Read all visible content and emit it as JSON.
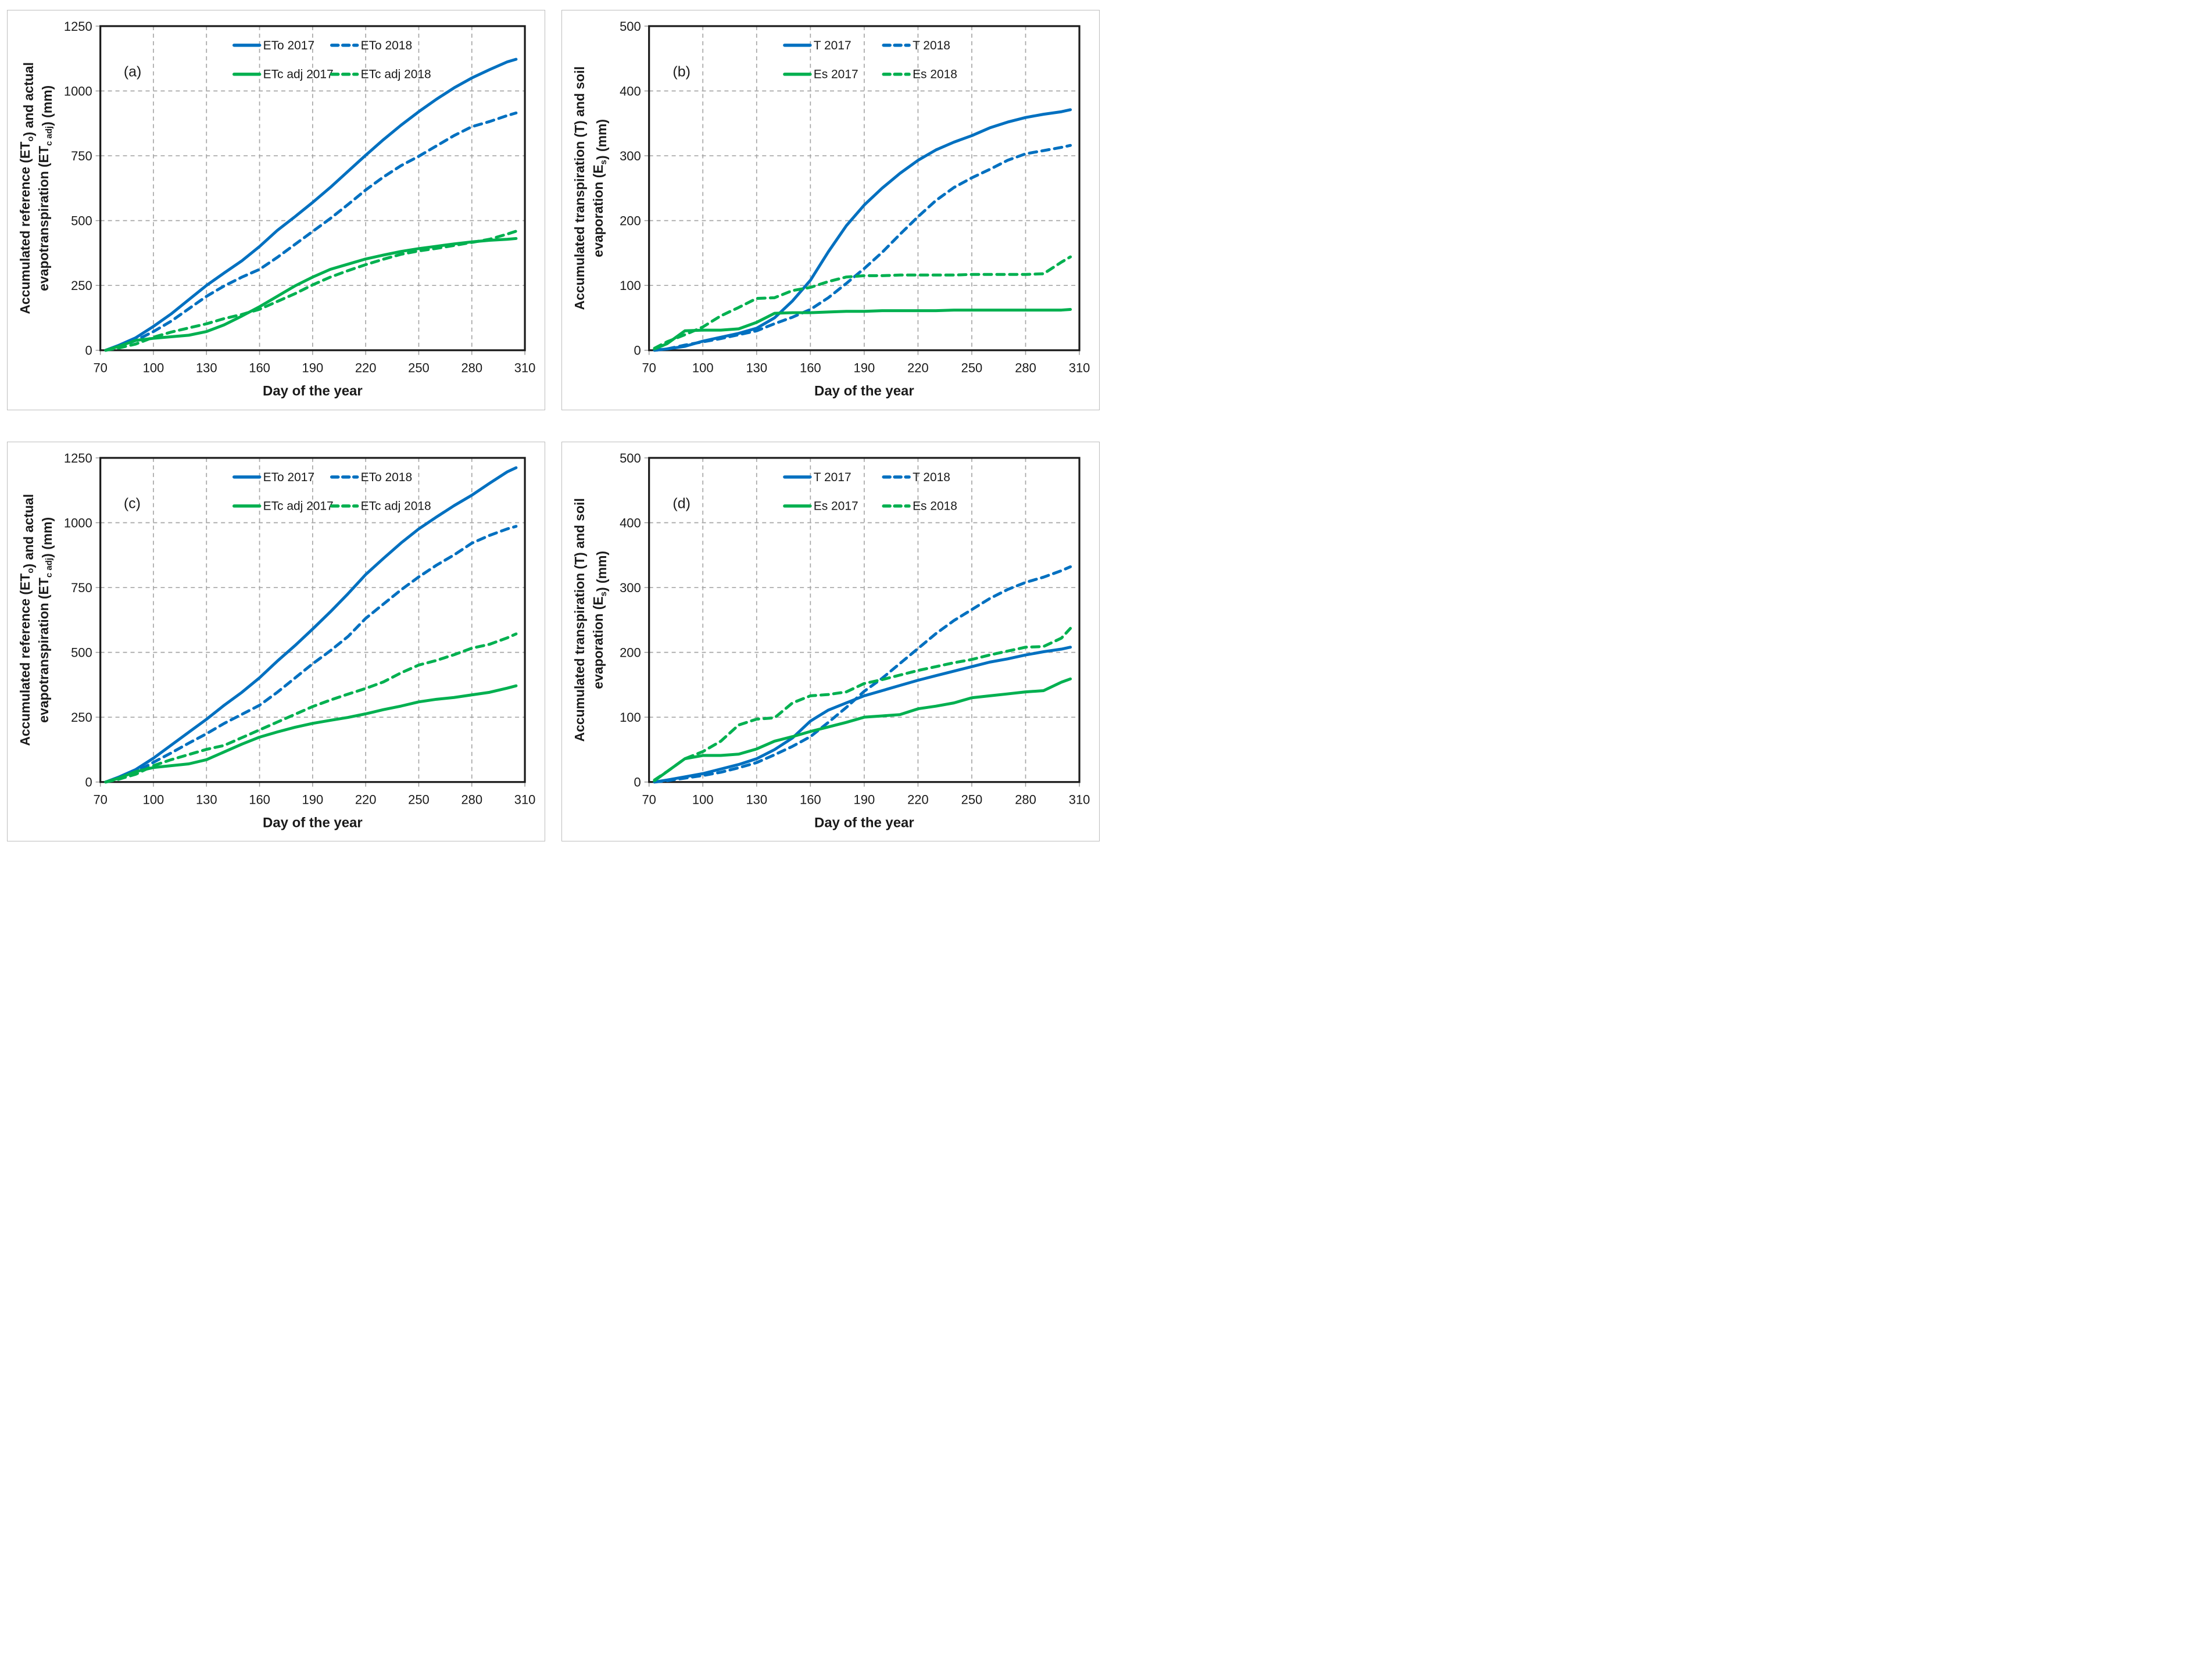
{
  "figure": {
    "description": "Four-panel line figure of accumulated evapotranspiration components versus day of year",
    "accent_blue": "#0070C0",
    "accent_green": "#00B050",
    "grid_color": "#a6a6a6",
    "axis_color": "#1a1a1a"
  },
  "chart_data": [
    {
      "type": "line",
      "panel_label": "(a)",
      "xlabel": "Day of the year",
      "ylabel_lines": [
        {
          "segments": [
            {
              "t": "Accumulated reference (ET"
            },
            {
              "t": "o",
              "sub": true
            },
            {
              "t": ") and actual"
            }
          ]
        },
        {
          "segments": [
            {
              "t": "evapotranspiration (ET"
            },
            {
              "t": "c adj",
              "sub": true
            },
            {
              "t": ") (mm)"
            }
          ]
        }
      ],
      "xlim": [
        70,
        310
      ],
      "xticks": [
        70,
        100,
        130,
        160,
        190,
        220,
        250,
        280,
        310
      ],
      "ylim": [
        0,
        1250
      ],
      "yticks": [
        0,
        250,
        500,
        750,
        1000,
        1250
      ],
      "grid": true,
      "legend_position": "top-inside",
      "x": [
        73,
        80,
        90,
        100,
        110,
        120,
        130,
        140,
        150,
        160,
        170,
        180,
        190,
        200,
        210,
        220,
        230,
        240,
        250,
        260,
        270,
        280,
        290,
        300,
        305
      ],
      "series": [
        {
          "name": "ETo 2017",
          "color": "#0070C0",
          "dash": false,
          "values": [
            0,
            18,
            48,
            92,
            140,
            195,
            250,
            298,
            345,
            400,
            462,
            515,
            570,
            628,
            690,
            752,
            812,
            868,
            920,
            968,
            1012,
            1050,
            1082,
            1112,
            1122
          ]
        },
        {
          "name": "ETo 2018",
          "color": "#0070C0",
          "dash": true,
          "values": [
            0,
            12,
            38,
            72,
            112,
            160,
            208,
            248,
            282,
            312,
            358,
            408,
            458,
            508,
            562,
            618,
            668,
            712,
            748,
            788,
            828,
            862,
            882,
            905,
            915
          ]
        },
        {
          "name": "ETc adj 2017",
          "color": "#00B050",
          "dash": false,
          "values": [
            0,
            14,
            38,
            46,
            52,
            58,
            72,
            98,
            132,
            168,
            208,
            248,
            282,
            312,
            332,
            352,
            367,
            381,
            392,
            401,
            410,
            418,
            424,
            428,
            431
          ]
        },
        {
          "name": "ETc adj 2018",
          "color": "#00B050",
          "dash": true,
          "values": [
            0,
            8,
            24,
            50,
            70,
            86,
            102,
            122,
            138,
            158,
            188,
            218,
            252,
            282,
            307,
            330,
            351,
            370,
            383,
            393,
            404,
            416,
            428,
            448,
            459
          ]
        }
      ]
    },
    {
      "type": "line",
      "panel_label": "(b)",
      "xlabel": "Day of the year",
      "ylabel_lines": [
        {
          "segments": [
            {
              "t": "Accumulated transpiration (T) and soil"
            }
          ]
        },
        {
          "segments": [
            {
              "t": "evaporation (E"
            },
            {
              "t": "s",
              "sub": true
            },
            {
              "t": ") (mm)"
            }
          ]
        }
      ],
      "xlim": [
        70,
        310
      ],
      "xticks": [
        70,
        100,
        130,
        160,
        190,
        220,
        250,
        280,
        310
      ],
      "ylim": [
        0,
        500
      ],
      "yticks": [
        0,
        100,
        200,
        300,
        400,
        500
      ],
      "grid": true,
      "legend_position": "top-inside",
      "x": [
        73,
        80,
        90,
        100,
        110,
        120,
        130,
        140,
        150,
        160,
        170,
        180,
        190,
        200,
        210,
        220,
        230,
        240,
        250,
        260,
        270,
        280,
        290,
        300,
        305
      ],
      "series": [
        {
          "name": "T 2017",
          "color": "#0070C0",
          "dash": false,
          "values": [
            0,
            2,
            6,
            14,
            20,
            26,
            34,
            50,
            76,
            108,
            152,
            192,
            224,
            250,
            273,
            293,
            309,
            321,
            331,
            343,
            352,
            359,
            364,
            368,
            371
          ]
        },
        {
          "name": "T 2018",
          "color": "#0070C0",
          "dash": true,
          "values": [
            0,
            2,
            8,
            13,
            18,
            24,
            30,
            41,
            51,
            63,
            81,
            103,
            126,
            151,
            179,
            206,
            231,
            251,
            266,
            279,
            293,
            303,
            308,
            313,
            316
          ]
        },
        {
          "name": "Es 2017",
          "color": "#00B050",
          "dash": false,
          "values": [
            2,
            10,
            30,
            31,
            31,
            33,
            43,
            57,
            58,
            58,
            59,
            60,
            60,
            61,
            61,
            61,
            61,
            62,
            62,
            62,
            62,
            62,
            62,
            62,
            63
          ]
        },
        {
          "name": "Es 2018",
          "color": "#00B050",
          "dash": true,
          "values": [
            3,
            13,
            24,
            36,
            53,
            66,
            80,
            81,
            92,
            97,
            106,
            113,
            115,
            115,
            116,
            116,
            116,
            116,
            117,
            117,
            117,
            117,
            118,
            136,
            144
          ]
        }
      ]
    },
    {
      "type": "line",
      "panel_label": "(c)",
      "xlabel": "Day of the year",
      "ylabel_lines": [
        {
          "segments": [
            {
              "t": "Accumulated reference (ET"
            },
            {
              "t": "o",
              "sub": true
            },
            {
              "t": ") and actual"
            }
          ]
        },
        {
          "segments": [
            {
              "t": "evapotranspiration (ET"
            },
            {
              "t": "c adj",
              "sub": true
            },
            {
              "t": ") (mm)"
            }
          ]
        }
      ],
      "xlim": [
        70,
        310
      ],
      "xticks": [
        70,
        100,
        130,
        160,
        190,
        220,
        250,
        280,
        310
      ],
      "ylim": [
        0,
        1250
      ],
      "yticks": [
        0,
        250,
        500,
        750,
        1000,
        1250
      ],
      "grid": true,
      "legend_position": "top-inside",
      "x": [
        73,
        80,
        90,
        100,
        110,
        120,
        130,
        140,
        150,
        160,
        170,
        180,
        190,
        200,
        210,
        220,
        230,
        240,
        250,
        260,
        270,
        280,
        290,
        300,
        305
      ],
      "series": [
        {
          "name": "ETo 2017",
          "color": "#0070C0",
          "dash": false,
          "values": [
            0,
            18,
            48,
            92,
            142,
            192,
            242,
            296,
            346,
            402,
            466,
            526,
            590,
            656,
            726,
            800,
            862,
            922,
            976,
            1022,
            1066,
            1106,
            1152,
            1196,
            1212
          ]
        },
        {
          "name": "ETo 2018",
          "color": "#0070C0",
          "dash": true,
          "values": [
            0,
            12,
            38,
            76,
            112,
            150,
            186,
            226,
            261,
            296,
            346,
            401,
            456,
            506,
            561,
            631,
            686,
            741,
            791,
            836,
            876,
            921,
            951,
            976,
            986
          ]
        },
        {
          "name": "ETc adj 2017",
          "color": "#00B050",
          "dash": false,
          "values": [
            0,
            14,
            40,
            56,
            63,
            70,
            86,
            116,
            146,
            173,
            193,
            211,
            226,
            238,
            249,
            263,
            279,
            293,
            309,
            319,
            326,
            336,
            346,
            362,
            371
          ]
        },
        {
          "name": "ETc adj 2018",
          "color": "#00B050",
          "dash": true,
          "values": [
            0,
            10,
            30,
            63,
            86,
            106,
            126,
            141,
            171,
            201,
            231,
            261,
            291,
            316,
            339,
            361,
            386,
            421,
            451,
            469,
            491,
            516,
            531,
            556,
            571
          ]
        }
      ]
    },
    {
      "type": "line",
      "panel_label": "(d)",
      "xlabel": "Day of the year",
      "ylabel_lines": [
        {
          "segments": [
            {
              "t": "Accumulated transpiration (T) and soil"
            }
          ]
        },
        {
          "segments": [
            {
              "t": "evaporation (E"
            },
            {
              "t": "s",
              "sub": true
            },
            {
              "t": ") (mm)"
            }
          ]
        }
      ],
      "xlim": [
        70,
        310
      ],
      "xticks": [
        70,
        100,
        130,
        160,
        190,
        220,
        250,
        280,
        310
      ],
      "ylim": [
        0,
        500
      ],
      "yticks": [
        0,
        100,
        200,
        300,
        400,
        500
      ],
      "grid": true,
      "legend_position": "top-inside",
      "x": [
        73,
        80,
        90,
        100,
        110,
        120,
        130,
        140,
        150,
        160,
        170,
        180,
        190,
        200,
        210,
        220,
        230,
        240,
        250,
        260,
        270,
        280,
        290,
        300,
        305
      ],
      "series": [
        {
          "name": "T 2017",
          "color": "#0070C0",
          "dash": false,
          "values": [
            0,
            3,
            8,
            13,
            20,
            27,
            36,
            50,
            68,
            94,
            111,
            122,
            133,
            141,
            149,
            157,
            164,
            171,
            178,
            185,
            190,
            196,
            201,
            205,
            208
          ]
        },
        {
          "name": "T 2018",
          "color": "#0070C0",
          "dash": true,
          "values": [
            0,
            2,
            6,
            10,
            15,
            22,
            30,
            42,
            55,
            70,
            92,
            115,
            140,
            160,
            183,
            206,
            229,
            249,
            266,
            283,
            297,
            308,
            316,
            326,
            332
          ]
        },
        {
          "name": "Es 2017",
          "color": "#00B050",
          "dash": false,
          "values": [
            2,
            16,
            36,
            41,
            41,
            43,
            51,
            63,
            70,
            78,
            85,
            92,
            100,
            102,
            104,
            113,
            117,
            122,
            130,
            133,
            136,
            139,
            141,
            154,
            159
          ]
        },
        {
          "name": "Es 2018",
          "color": "#00B050",
          "dash": true,
          "values": [
            3,
            16,
            36,
            47,
            63,
            88,
            97,
            99,
            122,
            133,
            135,
            139,
            152,
            158,
            165,
            172,
            178,
            184,
            189,
            196,
            202,
            208,
            209,
            222,
            237
          ]
        }
      ]
    }
  ]
}
